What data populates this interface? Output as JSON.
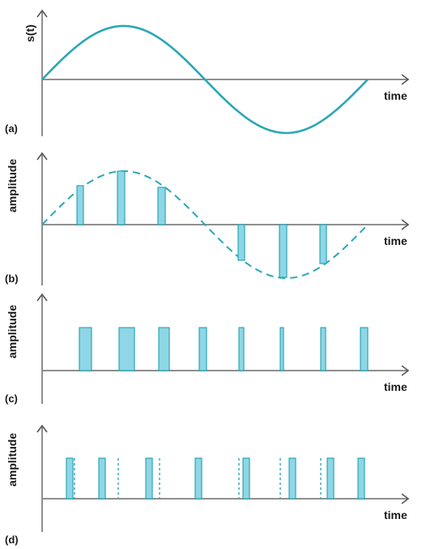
{
  "colors": {
    "wave": "#2aa7b5",
    "pulse_fill": "#8fd6e6",
    "pulse_stroke": "#2aa7b5",
    "axis": "#8f8f8f"
  },
  "panels": [
    {
      "id": "a",
      "tag": "(a)",
      "ylabel": "s(t)",
      "xlabel": "time",
      "content": "sine wave"
    },
    {
      "id": "b",
      "tag": "(b)",
      "ylabel": "amplitude",
      "xlabel": "time",
      "content": "dashed sine with sampled pulses"
    },
    {
      "id": "c",
      "tag": "(c)",
      "ylabel": "amplitude",
      "xlabel": "time",
      "content": "equal-height pulse train, varying width"
    },
    {
      "id": "d",
      "tag": "(d)",
      "ylabel": "amplitude",
      "xlabel": "time",
      "content": "equal-height pulses, varying position"
    }
  ]
}
